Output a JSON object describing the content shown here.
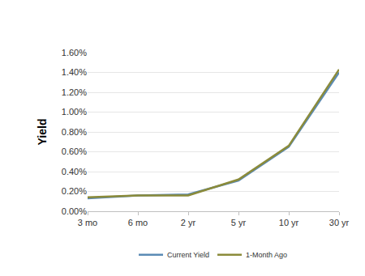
{
  "chart_data": {
    "type": "line",
    "y_label": "Yield",
    "categories": [
      "3 mo",
      "6 mo",
      "2 yr",
      "5 yr",
      "10 yr",
      "30 yr"
    ],
    "series": [
      {
        "name": "Current Yield",
        "color": "#5b8bb5",
        "values": [
          0.13,
          0.16,
          0.17,
          0.31,
          0.65,
          1.4
        ]
      },
      {
        "name": "1-Month Ago",
        "color": "#8b8b3a",
        "values": [
          0.14,
          0.16,
          0.16,
          0.32,
          0.66,
          1.43
        ]
      }
    ],
    "ylim": [
      0,
      1.6
    ],
    "yticks": [
      {
        "value": 0,
        "label": "0.00%"
      },
      {
        "value": 0.2,
        "label": "0.20%"
      },
      {
        "value": 0.4,
        "label": "0.40%"
      },
      {
        "value": 0.6,
        "label": "0.60%"
      },
      {
        "value": 0.8,
        "label": "0.80%"
      },
      {
        "value": 1.0,
        "label": "1.00%"
      },
      {
        "value": 1.2,
        "label": "1.20%"
      },
      {
        "value": 1.4,
        "label": "1.40%"
      },
      {
        "value": 1.6,
        "label": "1.60%"
      }
    ],
    "grid": true,
    "legend": "bottom"
  }
}
